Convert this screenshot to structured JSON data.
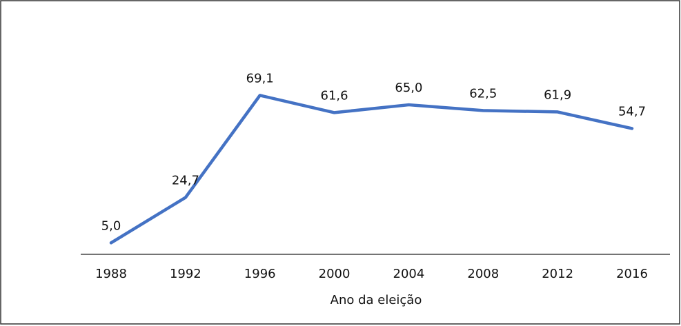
{
  "chart_data": {
    "type": "line",
    "x_label": "Ano da eleição",
    "categories": [
      "1988",
      "1992",
      "1996",
      "2000",
      "2004",
      "2008",
      "2012",
      "2016"
    ],
    "series": [
      {
        "color": "#4472c4",
        "values": [
          5.0,
          24.7,
          69.1,
          61.6,
          65.0,
          62.5,
          61.9,
          54.7
        ],
        "value_labels": [
          "5,0",
          "24,7",
          "69,1",
          "61,6",
          "65,0",
          "62,5",
          "61,9",
          "54,7"
        ]
      }
    ],
    "ylim": [
      0,
      80
    ]
  }
}
